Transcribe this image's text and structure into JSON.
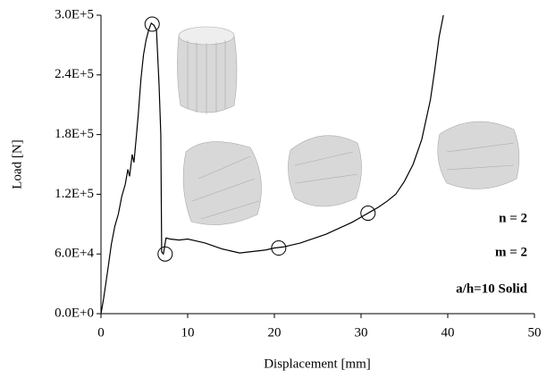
{
  "chart_data": {
    "type": "line",
    "x_label": "Displacement [mm]",
    "y_label": "Load [N]",
    "xlim": [
      0,
      50
    ],
    "xticks": [
      0,
      10,
      20,
      30,
      40,
      50
    ],
    "ylim": [
      0,
      300000
    ],
    "yticks": [
      {
        "value": 0,
        "label": "0.0E+0"
      },
      {
        "value": 60000,
        "label": "6.0E+4"
      },
      {
        "value": 120000,
        "label": "1.2E+5"
      },
      {
        "value": 180000,
        "label": "1.8E+5"
      },
      {
        "value": 240000,
        "label": "2.4E+5"
      },
      {
        "value": 300000,
        "label": "3.0E+5"
      }
    ],
    "color": "#000000",
    "x": [
      0,
      0.3,
      0.8,
      1.2,
      1.6,
      2.0,
      2.4,
      2.8,
      3.1,
      3.3,
      3.6,
      3.8,
      4.1,
      4.3,
      4.6,
      4.9,
      5.2,
      5.5,
      5.8,
      6.1,
      6.4,
      6.7,
      6.9,
      7.0,
      7.2,
      7.5,
      8,
      9,
      10,
      11,
      12,
      13,
      14,
      15,
      16,
      17,
      18,
      19,
      20,
      21,
      22,
      23,
      24,
      25,
      26,
      27,
      28,
      29,
      30,
      31,
      32,
      33,
      34,
      35,
      36,
      37,
      38,
      38.5,
      39,
      39.5
    ],
    "values": [
      0,
      15000,
      45000,
      70000,
      88000,
      100000,
      118000,
      130000,
      145000,
      138000,
      160000,
      152000,
      180000,
      200000,
      235000,
      260000,
      275000,
      285000,
      292000,
      290000,
      285000,
      230000,
      180000,
      62000,
      60000,
      76000,
      75000,
      74000,
      75000,
      73000,
      71000,
      68000,
      65000,
      63000,
      61000,
      62000,
      63000,
      64000,
      66000,
      67000,
      69000,
      71000,
      74000,
      77000,
      80000,
      84000,
      88000,
      92000,
      97000,
      102000,
      107000,
      113000,
      120000,
      133000,
      150000,
      175000,
      215000,
      245000,
      278000,
      300000
    ],
    "markers": {
      "x": [
        5.9,
        7.4,
        20.5,
        30.8
      ],
      "values": [
        291000,
        60000,
        66000,
        101000
      ]
    },
    "annotations": [
      "n  =  2",
      "m  =  2",
      "a/h=10  Solid"
    ]
  }
}
